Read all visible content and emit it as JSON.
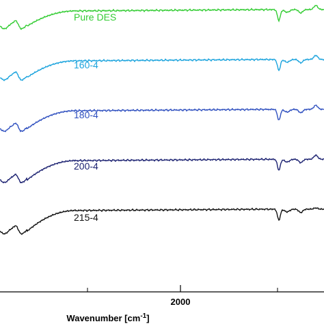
{
  "chart_data": {
    "type": "line",
    "title": "",
    "xlabel": "Wavenumber [cm",
    "xlabel_superscript": "-1",
    "xlabel_suffix": "]",
    "ylabel": "",
    "x_ticks": [
      2000
    ],
    "x_tick_labels": [
      "2000"
    ],
    "xlim": [
      3950,
      1600
    ],
    "grid": false,
    "x_reversed": true,
    "series": [
      {
        "name": "Pure DES",
        "color": "#33cc33",
        "offset": 0
      },
      {
        "name": "160-4",
        "color": "#1aa3dd",
        "offset": 1
      },
      {
        "name": "180-4",
        "color": "#2e4fbf",
        "offset": 2
      },
      {
        "name": "200-4",
        "color": "#1a2070",
        "offset": 3
      },
      {
        "name": "215-4",
        "color": "#111111",
        "offset": 4
      }
    ]
  }
}
